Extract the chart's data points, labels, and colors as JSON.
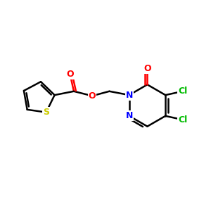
{
  "background_color": "#ffffff",
  "bond_color": "#000000",
  "bond_width": 1.8,
  "atom_colors": {
    "O": "#ff0000",
    "N": "#0000ff",
    "S": "#cccc00",
    "Cl": "#00bb00",
    "C": "#000000"
  },
  "font_size": 9,
  "fig_width": 3.0,
  "fig_height": 3.0,
  "dpi": 100
}
